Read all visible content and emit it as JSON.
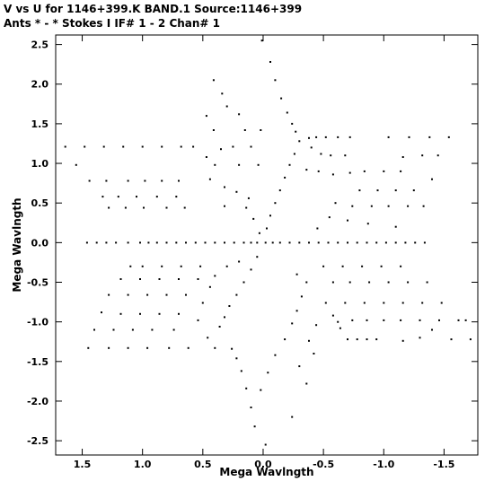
{
  "header": {
    "line1": "V vs U for 1146+399.K BAND.1   Source:1146+399",
    "line2": "Ants * - *     Stokes I  IF# 1 - 2  Chan# 1"
  },
  "chart_data": {
    "type": "scatter",
    "title": "V vs U for 1146+399.K BAND.1   Source:1146+399",
    "subtitle": "Ants * - *     Stokes I  IF# 1 - 2  Chan# 1",
    "xlabel": "Mega Wavlngth",
    "ylabel": "Mega Wavlngth",
    "xlim": [
      1.72,
      -1.78
    ],
    "ylim": [
      -2.68,
      2.62
    ],
    "x_reversed": true,
    "x_ticks": [
      1.5,
      1.0,
      0.5,
      0.0,
      -0.5,
      -1.0,
      -1.5
    ],
    "x_tick_labels": [
      "1.5",
      "1.0",
      "0.5",
      "0.0",
      "-0.5",
      "-1.0",
      "-1.5"
    ],
    "y_ticks": [
      2.5,
      2.0,
      1.5,
      1.0,
      0.5,
      0.0,
      -0.5,
      -1.0,
      -1.5,
      -2.0,
      -2.5
    ],
    "y_tick_labels": [
      "2.5",
      "2.0",
      "1.5",
      "1.0",
      "0.5",
      "0.0",
      "-0.5",
      "-1.0",
      "-1.5",
      "-2.0",
      "-2.5"
    ],
    "grid": false,
    "legend": "none",
    "marker_color": "#000000",
    "series": [
      {
        "values": [
          [
            1.64,
            1.21
          ],
          [
            1.48,
            1.21
          ],
          [
            1.32,
            1.21
          ],
          [
            1.16,
            1.21
          ],
          [
            1.0,
            1.21
          ],
          [
            0.84,
            1.21
          ],
          [
            0.68,
            1.21
          ],
          [
            0.58,
            1.21
          ],
          [
            1.55,
            0.98
          ],
          [
            1.44,
            0.78
          ],
          [
            1.3,
            0.78
          ],
          [
            1.12,
            0.78
          ],
          [
            0.98,
            0.78
          ],
          [
            0.84,
            0.78
          ],
          [
            0.7,
            0.78
          ],
          [
            1.33,
            0.58
          ],
          [
            1.2,
            0.58
          ],
          [
            1.05,
            0.58
          ],
          [
            0.88,
            0.58
          ],
          [
            0.72,
            0.58
          ],
          [
            1.28,
            0.44
          ],
          [
            1.14,
            0.44
          ],
          [
            0.99,
            0.44
          ],
          [
            0.8,
            0.44
          ],
          [
            0.65,
            0.44
          ],
          [
            0.41,
            2.05
          ],
          [
            0.34,
            1.88
          ],
          [
            0.3,
            1.72
          ],
          [
            0.2,
            1.62
          ],
          [
            0.47,
            1.6
          ],
          [
            0.41,
            1.42
          ],
          [
            0.15,
            1.42
          ],
          [
            0.02,
            1.42
          ],
          [
            0.35,
            1.18
          ],
          [
            0.25,
            1.21
          ],
          [
            0.1,
            1.21
          ],
          [
            0.47,
            1.08
          ],
          [
            0.4,
            0.98
          ],
          [
            0.2,
            0.98
          ],
          [
            0.04,
            0.98
          ],
          [
            0.44,
            0.8
          ],
          [
            0.32,
            0.7
          ],
          [
            0.22,
            0.64
          ],
          [
            0.12,
            0.56
          ],
          [
            0.32,
            0.46
          ],
          [
            0.14,
            0.44
          ],
          [
            0.08,
            0.3
          ],
          [
            0.03,
            0.12
          ],
          [
            0.01,
            2.55
          ],
          [
            -0.06,
            2.28
          ],
          [
            -0.1,
            2.05
          ],
          [
            -0.15,
            1.82
          ],
          [
            -0.2,
            1.64
          ],
          [
            -0.24,
            1.5
          ],
          [
            -0.27,
            1.4
          ],
          [
            -0.3,
            1.28
          ],
          [
            -0.26,
            1.12
          ],
          [
            -0.22,
            0.98
          ],
          [
            -0.18,
            0.82
          ],
          [
            -0.14,
            0.66
          ],
          [
            -0.1,
            0.5
          ],
          [
            -0.06,
            0.34
          ],
          [
            -0.03,
            0.18
          ],
          [
            -0.38,
            1.32
          ],
          [
            -0.44,
            1.33
          ],
          [
            -0.52,
            1.33
          ],
          [
            -0.62,
            1.33
          ],
          [
            -0.72,
            1.33
          ],
          [
            -0.4,
            1.2
          ],
          [
            -0.48,
            1.12
          ],
          [
            -0.56,
            1.1
          ],
          [
            -0.68,
            1.1
          ],
          [
            -0.36,
            0.92
          ],
          [
            -0.46,
            0.9
          ],
          [
            -0.58,
            0.86
          ],
          [
            -0.72,
            0.88
          ],
          [
            -0.84,
            0.9
          ],
          [
            -1.0,
            0.9
          ],
          [
            -1.14,
            0.9
          ],
          [
            -1.04,
            1.33
          ],
          [
            -1.21,
            1.33
          ],
          [
            -1.38,
            1.33
          ],
          [
            -1.54,
            1.33
          ],
          [
            -1.16,
            1.08
          ],
          [
            -1.32,
            1.1
          ],
          [
            -1.45,
            1.1
          ],
          [
            -0.8,
            0.66
          ],
          [
            -0.95,
            0.66
          ],
          [
            -1.1,
            0.66
          ],
          [
            -1.25,
            0.66
          ],
          [
            -1.4,
            0.8
          ],
          [
            -0.6,
            0.5
          ],
          [
            -0.74,
            0.46
          ],
          [
            -0.9,
            0.46
          ],
          [
            -1.04,
            0.46
          ],
          [
            -1.2,
            0.46
          ],
          [
            -1.33,
            0.46
          ],
          [
            -0.55,
            0.32
          ],
          [
            -0.7,
            0.28
          ],
          [
            -0.87,
            0.24
          ],
          [
            -1.1,
            0.2
          ],
          [
            -0.45,
            0.18
          ],
          [
            1.46,
            0.0
          ],
          [
            1.38,
            0.0
          ],
          [
            1.3,
            0.0
          ],
          [
            1.22,
            0.0
          ],
          [
            1.12,
            0.0
          ],
          [
            1.02,
            0.0
          ],
          [
            0.95,
            0.0
          ],
          [
            0.88,
            0.0
          ],
          [
            0.8,
            0.0
          ],
          [
            0.72,
            0.0
          ],
          [
            0.64,
            0.0
          ],
          [
            0.56,
            0.0
          ],
          [
            0.48,
            0.0
          ],
          [
            0.4,
            0.0
          ],
          [
            0.32,
            0.0
          ],
          [
            0.24,
            0.0
          ],
          [
            0.16,
            0.0
          ],
          [
            0.1,
            0.0
          ],
          [
            0.05,
            0.0
          ],
          [
            -0.02,
            0.0
          ],
          [
            -0.08,
            0.0
          ],
          [
            -0.14,
            0.0
          ],
          [
            -0.22,
            0.0
          ],
          [
            -0.3,
            0.0
          ],
          [
            -0.38,
            0.0
          ],
          [
            -0.46,
            0.0
          ],
          [
            -0.54,
            0.0
          ],
          [
            -0.62,
            0.0
          ],
          [
            -0.7,
            0.0
          ],
          [
            -0.78,
            0.0
          ],
          [
            -0.86,
            0.0
          ],
          [
            -0.94,
            0.0
          ],
          [
            -1.02,
            0.0
          ],
          [
            -1.1,
            0.0
          ],
          [
            -1.18,
            0.0
          ],
          [
            -1.26,
            0.0
          ],
          [
            -1.34,
            0.0
          ],
          [
            1.1,
            -0.3
          ],
          [
            1.0,
            -0.3
          ],
          [
            0.84,
            -0.3
          ],
          [
            0.68,
            -0.3
          ],
          [
            0.52,
            -0.3
          ],
          [
            1.18,
            -0.46
          ],
          [
            1.02,
            -0.46
          ],
          [
            0.86,
            -0.46
          ],
          [
            0.7,
            -0.46
          ],
          [
            0.54,
            -0.46
          ],
          [
            1.28,
            -0.66
          ],
          [
            1.12,
            -0.66
          ],
          [
            0.96,
            -0.66
          ],
          [
            0.8,
            -0.66
          ],
          [
            0.64,
            -0.66
          ],
          [
            1.34,
            -0.88
          ],
          [
            1.18,
            -0.9
          ],
          [
            1.02,
            -0.9
          ],
          [
            0.86,
            -0.9
          ],
          [
            0.7,
            -0.9
          ],
          [
            1.4,
            -1.1
          ],
          [
            1.24,
            -1.1
          ],
          [
            1.08,
            -1.1
          ],
          [
            0.92,
            -1.1
          ],
          [
            0.74,
            -1.1
          ],
          [
            1.45,
            -1.33
          ],
          [
            1.28,
            -1.33
          ],
          [
            1.12,
            -1.33
          ],
          [
            0.96,
            -1.33
          ],
          [
            0.78,
            -1.33
          ],
          [
            0.62,
            -1.33
          ],
          [
            0.4,
            -1.33
          ],
          [
            0.46,
            -1.2
          ],
          [
            0.36,
            -1.06
          ],
          [
            0.32,
            -0.94
          ],
          [
            0.28,
            -0.8
          ],
          [
            0.22,
            -0.66
          ],
          [
            0.16,
            -0.5
          ],
          [
            0.1,
            -0.34
          ],
          [
            0.05,
            -0.18
          ],
          [
            0.54,
            -0.98
          ],
          [
            0.5,
            -0.76
          ],
          [
            0.44,
            -0.56
          ],
          [
            0.4,
            -0.42
          ],
          [
            0.3,
            -0.3
          ],
          [
            0.2,
            -0.24
          ],
          [
            -0.02,
            -2.55
          ],
          [
            0.07,
            -2.32
          ],
          [
            0.1,
            -2.08
          ],
          [
            0.14,
            -1.84
          ],
          [
            0.18,
            -1.62
          ],
          [
            0.22,
            -1.46
          ],
          [
            0.26,
            -1.34
          ],
          [
            0.02,
            -1.86
          ],
          [
            -0.04,
            -1.64
          ],
          [
            -0.1,
            -1.42
          ],
          [
            -0.18,
            -1.22
          ],
          [
            -0.24,
            -1.02
          ],
          [
            -0.28,
            -0.86
          ],
          [
            -0.32,
            -0.68
          ],
          [
            -0.24,
            -2.2
          ],
          [
            -0.36,
            -1.78
          ],
          [
            -0.3,
            -1.56
          ],
          [
            -0.42,
            -1.4
          ],
          [
            -0.38,
            -1.24
          ],
          [
            -0.44,
            -1.04
          ],
          [
            -0.36,
            -0.5
          ],
          [
            -0.28,
            -0.4
          ],
          [
            -0.52,
            -0.76
          ],
          [
            -0.58,
            -0.92
          ],
          [
            -0.64,
            -1.08
          ],
          [
            -0.7,
            -1.22
          ],
          [
            -0.78,
            -1.22
          ],
          [
            -0.86,
            -1.22
          ],
          [
            -0.94,
            -1.22
          ],
          [
            -0.62,
            -1.0
          ],
          [
            -0.74,
            -0.98
          ],
          [
            -0.86,
            -0.98
          ],
          [
            -1.0,
            -0.98
          ],
          [
            -1.14,
            -0.98
          ],
          [
            -1.3,
            -0.98
          ],
          [
            -1.46,
            -0.98
          ],
          [
            -1.62,
            -0.98
          ],
          [
            -0.68,
            -0.76
          ],
          [
            -0.84,
            -0.76
          ],
          [
            -1.0,
            -0.76
          ],
          [
            -1.16,
            -0.76
          ],
          [
            -1.32,
            -0.76
          ],
          [
            -1.48,
            -0.76
          ],
          [
            -0.58,
            -0.5
          ],
          [
            -0.72,
            -0.5
          ],
          [
            -0.88,
            -0.5
          ],
          [
            -1.04,
            -0.5
          ],
          [
            -1.2,
            -0.5
          ],
          [
            -1.36,
            -0.5
          ],
          [
            -0.5,
            -0.3
          ],
          [
            -0.66,
            -0.3
          ],
          [
            -0.82,
            -0.3
          ],
          [
            -0.98,
            -0.3
          ],
          [
            -1.14,
            -0.3
          ],
          [
            -1.4,
            -1.1
          ],
          [
            -1.56,
            -1.22
          ],
          [
            -1.72,
            -1.22
          ],
          [
            -1.3,
            -1.2
          ],
          [
            -1.16,
            -1.24
          ],
          [
            -1.68,
            -0.98
          ]
        ]
      }
    ]
  }
}
